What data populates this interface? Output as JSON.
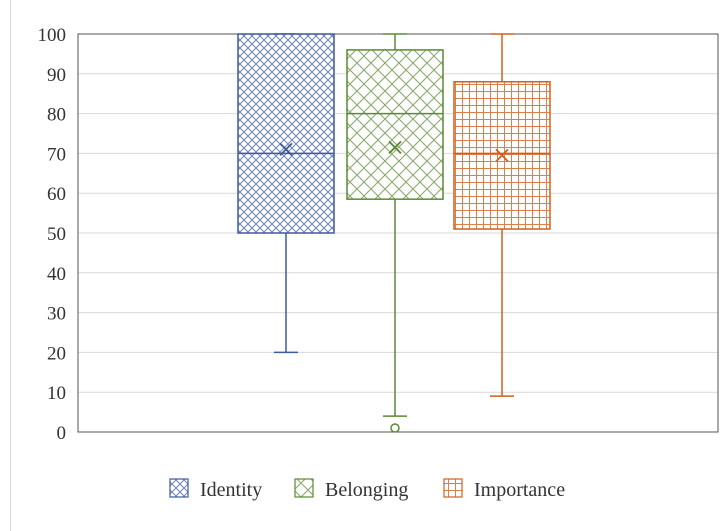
{
  "chart_data": {
    "type": "boxplot",
    "title": "",
    "xlabel": "",
    "ylabel": "",
    "ylim": [
      0,
      100
    ],
    "yticks": [
      0,
      10,
      20,
      30,
      40,
      50,
      60,
      70,
      80,
      90,
      100
    ],
    "grid": true,
    "legend_position": "bottom",
    "series": [
      {
        "name": "Identity",
        "min": 20,
        "q1": 50,
        "median": 70,
        "q3": 100,
        "max": 100,
        "mean": 71,
        "outliers": [],
        "color": "#3d5a9e",
        "pattern": "crosshatch-dense"
      },
      {
        "name": "Belonging",
        "min": 4,
        "q1": 58.5,
        "median": 80,
        "q3": 96,
        "max": 100,
        "mean": 71.5,
        "outliers": [
          1
        ],
        "color": "#5b8a34",
        "pattern": "diagonal-cross"
      },
      {
        "name": "Importance",
        "min": 9,
        "q1": 51,
        "median": 70,
        "q3": 88,
        "max": 100,
        "mean": 69.5,
        "outliers": [],
        "color": "#d0601f",
        "pattern": "grid"
      }
    ]
  }
}
